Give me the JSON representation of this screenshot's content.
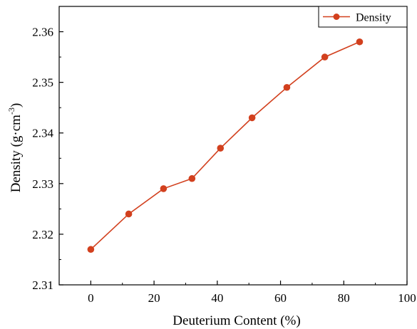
{
  "chart_data": {
    "type": "line",
    "xlabel": "Deuterium Content (%)",
    "ylabel": {
      "main": "Density (g·cm",
      "sup": "-3",
      "close": ")"
    },
    "xlim": [
      -10,
      100
    ],
    "ylim": [
      2.31,
      2.365
    ],
    "xticks": [
      0,
      20,
      40,
      60,
      80,
      100
    ],
    "yticks": [
      2.31,
      2.32,
      2.33,
      2.34,
      2.35,
      2.36
    ],
    "xtick_labels": [
      "0",
      "20",
      "40",
      "60",
      "80",
      "100"
    ],
    "ytick_labels": [
      "2.31",
      "2.32",
      "2.33",
      "2.34",
      "2.35",
      "2.36"
    ],
    "grid": false,
    "legend_position": "top-right",
    "series": [
      {
        "name": "Density",
        "color": "#d2401e",
        "marker": "circle",
        "x": [
          0,
          12,
          23,
          32,
          41,
          51,
          62,
          74,
          85
        ],
        "y": [
          2.317,
          2.324,
          2.329,
          2.331,
          2.337,
          2.343,
          2.349,
          2.355,
          2.358
        ]
      }
    ]
  }
}
